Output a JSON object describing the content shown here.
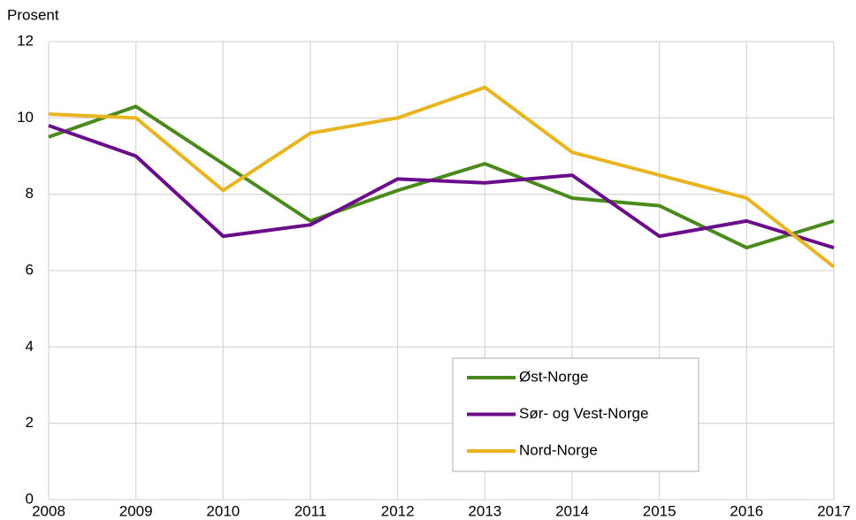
{
  "chart_data": {
    "type": "line",
    "y_label": "Prosent",
    "x": [
      2008,
      2009,
      2010,
      2011,
      2012,
      2013,
      2014,
      2015,
      2016,
      2017
    ],
    "series": [
      {
        "name": "Øst-Norge",
        "color": "#4a8a1c",
        "values": [
          9.5,
          10.3,
          8.8,
          7.3,
          8.1,
          8.8,
          7.9,
          7.7,
          6.6,
          7.3
        ]
      },
      {
        "name": "Sør- og Vest-Norge",
        "color": "#6a0d8a",
        "values": [
          9.8,
          9.0,
          6.9,
          7.2,
          8.4,
          8.3,
          8.5,
          6.9,
          7.3,
          6.6
        ]
      },
      {
        "name": "Nord-Norge",
        "color": "#e8b520",
        "values": [
          10.1,
          10.0,
          8.1,
          9.6,
          10.0,
          10.8,
          9.1,
          8.5,
          7.9,
          6.1
        ]
      }
    ],
    "xlim": [
      2008,
      2017
    ],
    "xticks": [
      2008,
      2009,
      2010,
      2011,
      2012,
      2013,
      2014,
      2015,
      2016,
      2017
    ],
    "ylim": [
      0,
      12
    ],
    "yticks": [
      0,
      2,
      4,
      6,
      8,
      10,
      12
    ],
    "grid": true
  }
}
